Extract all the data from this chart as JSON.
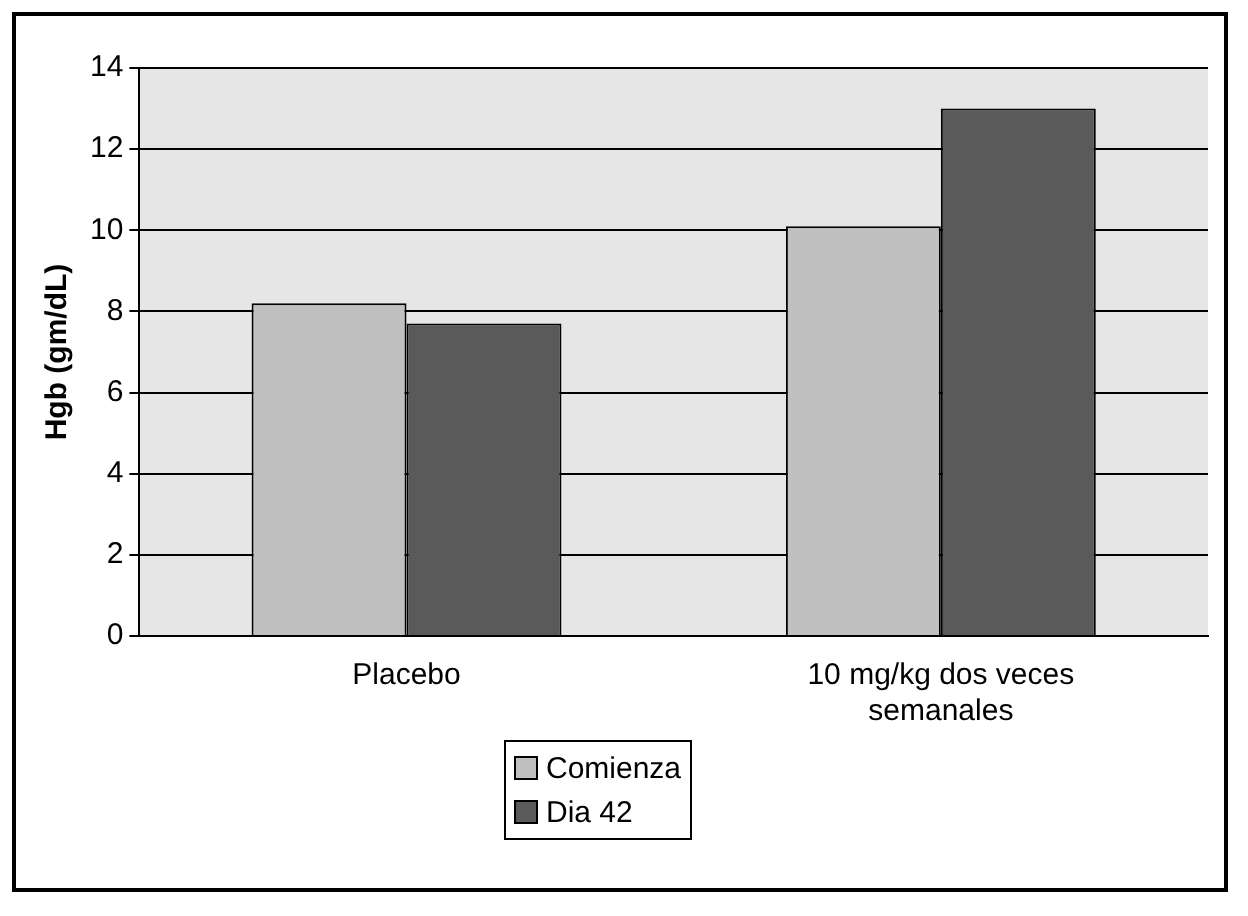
{
  "chart_data": {
    "type": "bar",
    "ylabel": "Hgb (gm/dL)",
    "categories": [
      "Placebo",
      "10 mg/kg dos veces semanales"
    ],
    "series": [
      {
        "name": "Comienza",
        "color": "#c0c0c0",
        "values": [
          8.2,
          10.1
        ]
      },
      {
        "name": "Dia 42",
        "color": "#5a5a5a",
        "values": [
          7.7,
          13.0
        ]
      }
    ],
    "ylim": [
      0,
      14
    ],
    "yticks": [
      0,
      2,
      4,
      6,
      8,
      10,
      12,
      14
    ],
    "grid": "y",
    "legend": "bottom"
  }
}
